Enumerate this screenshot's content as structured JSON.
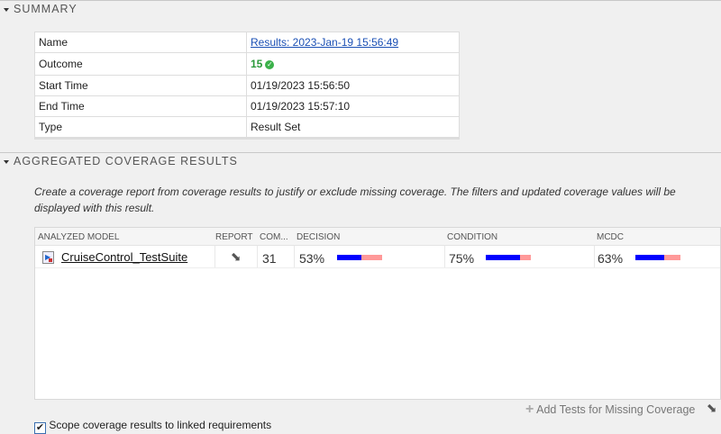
{
  "summary": {
    "title": "SUMMARY",
    "rows": [
      {
        "label": "Name",
        "value": "Results: 2023-Jan-19 15:56:49"
      },
      {
        "label": "Outcome",
        "value": "15"
      },
      {
        "label": "Start Time",
        "value": "01/19/2023 15:56:50"
      },
      {
        "label": "End Time",
        "value": "01/19/2023 15:57:10"
      },
      {
        "label": "Type",
        "value": "Result Set"
      }
    ]
  },
  "coverage": {
    "title": "AGGREGATED COVERAGE RESULTS",
    "description": "Create a coverage report from coverage results to justify or exclude missing coverage. The filters and updated coverage values will be displayed with this result.",
    "headers": [
      "ANALYZED MODEL",
      "REPORT",
      "COM...",
      "DECISION",
      "CONDITION",
      "MCDC"
    ],
    "rows": [
      {
        "model": "CruiseControl_TestSuite",
        "com": "31",
        "decision": "53%",
        "condition": "75%",
        "mcdc": "63%",
        "decision_frac": 0.53,
        "condition_frac": 0.75,
        "mcdc_frac": 0.63
      }
    ],
    "add_tests": "Add Tests for Missing Coverage",
    "scope_label": "Scope coverage results to linked requirements",
    "scope_checked": true,
    "colors": {
      "covered": "#0000ff",
      "missing": "#ff9999"
    }
  }
}
